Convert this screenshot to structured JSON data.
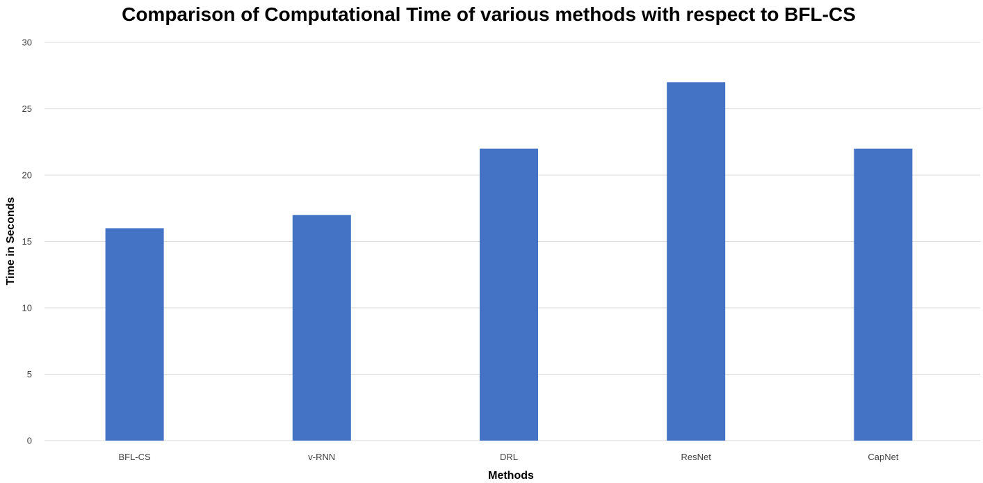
{
  "chart_data": {
    "type": "bar",
    "title": "Comparison of Computational Time of various methods with respect to BFL-CS",
    "xlabel": "Methods",
    "ylabel": "Time in Seconds",
    "categories": [
      "BFL-CS",
      "v-RNN",
      "DRL",
      "ResNet",
      "CapNet"
    ],
    "values": [
      16,
      17,
      22,
      27,
      22
    ],
    "ylim": [
      0,
      30
    ],
    "yticks": [
      "0",
      "5",
      "10",
      "15",
      "20",
      "25",
      "30"
    ],
    "grid": true,
    "legend": "none",
    "bar_color": "#4472c4"
  }
}
